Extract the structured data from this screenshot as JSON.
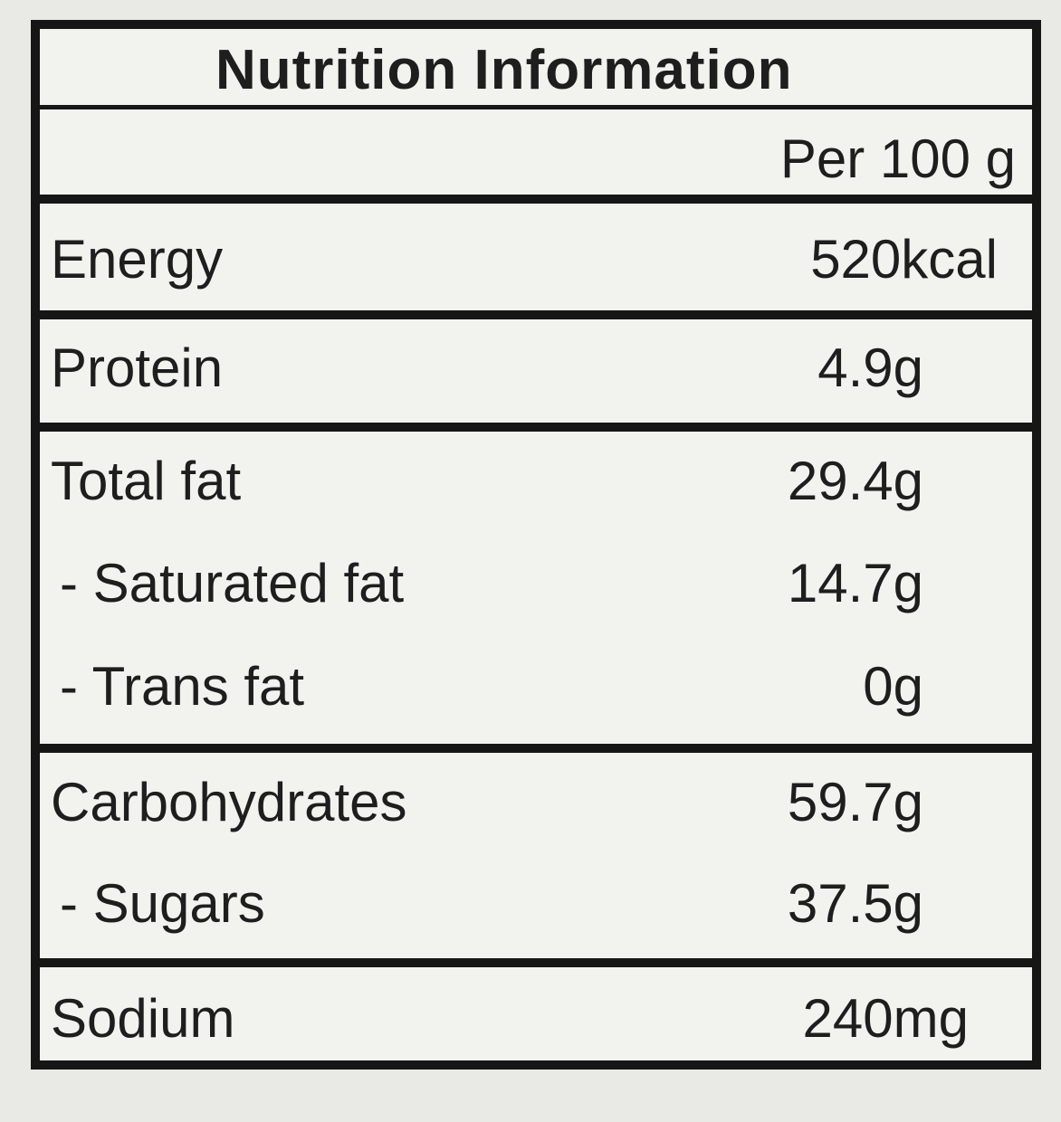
{
  "label": {
    "title": "Nutrition Information",
    "serving_header": "Per 100 g",
    "rows": [
      {
        "name": "Energy",
        "value": "520kcal"
      },
      {
        "name": "Protein",
        "value": "4.9g"
      },
      {
        "name": "Total fat",
        "value": "29.4g"
      },
      {
        "name": "- Saturated fat",
        "value": "14.7g"
      },
      {
        "name": "- Trans fat",
        "value": "0g"
      },
      {
        "name": "Carbohydrates",
        "value": "59.7g"
      },
      {
        "name": "- Sugars",
        "value": "37.5g"
      },
      {
        "name": "Sodium",
        "value": "240mg"
      }
    ]
  }
}
